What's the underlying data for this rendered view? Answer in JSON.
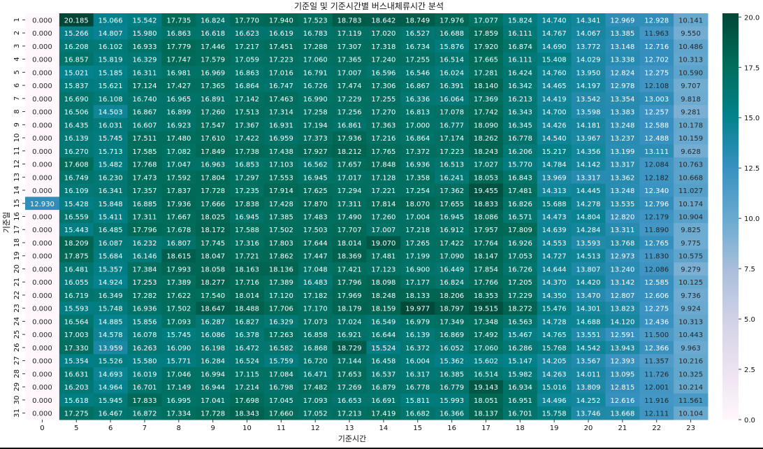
{
  "chart_data": {
    "type": "heatmap",
    "title": "기준일 및 기준시간별 버스내체류시간 분석",
    "xlabel": "기준시간",
    "ylabel": "기준일",
    "x_categories": [
      "0",
      "5",
      "6",
      "7",
      "8",
      "9",
      "10",
      "11",
      "12",
      "13",
      "14",
      "15",
      "16",
      "17",
      "18",
      "19",
      "20",
      "21",
      "22",
      "23"
    ],
    "y_categories": [
      "1",
      "2",
      "3",
      "4",
      "5",
      "6",
      "7",
      "8",
      "9",
      "10",
      "11",
      "12",
      "13",
      "14",
      "15",
      "16",
      "17",
      "18",
      "19",
      "20",
      "21",
      "22",
      "23",
      "24",
      "25",
      "26",
      "27",
      "28",
      "29",
      "30",
      "31"
    ],
    "values": [
      [
        0.0,
        20.185,
        15.066,
        15.542,
        17.735,
        16.824,
        17.77,
        17.94,
        17.523,
        18.783,
        18.642,
        18.749,
        17.976,
        17.077,
        15.824,
        14.74,
        14.341,
        12.969,
        12.928,
        10.141
      ],
      [
        0.0,
        15.266,
        14.807,
        15.98,
        16.863,
        16.618,
        16.623,
        16.619,
        16.783,
        17.119,
        17.02,
        16.527,
        16.688,
        17.859,
        16.111,
        14.767,
        14.067,
        13.385,
        11.963,
        9.55
      ],
      [
        0.0,
        16.208,
        16.102,
        16.933,
        17.779,
        17.446,
        17.217,
        17.451,
        17.288,
        17.307,
        17.318,
        16.734,
        15.876,
        17.92,
        16.874,
        14.69,
        13.772,
        13.148,
        12.716,
        10.486
      ],
      [
        0.0,
        16.857,
        15.819,
        16.329,
        17.747,
        17.579,
        17.059,
        17.223,
        17.06,
        17.365,
        17.24,
        17.255,
        16.514,
        17.665,
        16.111,
        15.408,
        14.029,
        13.338,
        12.702,
        10.313
      ],
      [
        0.0,
        15.021,
        15.185,
        16.311,
        16.981,
        16.969,
        16.863,
        17.016,
        16.791,
        17.007,
        16.596,
        16.546,
        16.024,
        17.281,
        16.424,
        14.76,
        13.95,
        12.824,
        12.275,
        10.59
      ],
      [
        0.0,
        15.837,
        15.621,
        17.124,
        17.427,
        17.365,
        16.864,
        16.747,
        16.726,
        17.474,
        17.306,
        16.867,
        16.391,
        18.14,
        16.342,
        14.465,
        14.197,
        12.978,
        12.108,
        9.707
      ],
      [
        0.0,
        16.69,
        16.108,
        16.74,
        16.965,
        16.891,
        17.142,
        17.463,
        16.99,
        17.229,
        17.255,
        16.336,
        16.064,
        17.369,
        16.213,
        14.419,
        13.542,
        13.354,
        13.003,
        9.818
      ],
      [
        0.0,
        16.506,
        14.503,
        16.867,
        16.899,
        17.26,
        17.513,
        17.314,
        17.258,
        17.256,
        17.27,
        16.813,
        17.078,
        17.742,
        16.343,
        14.7,
        13.598,
        13.383,
        12.257,
        9.281
      ],
      [
        0.0,
        16.435,
        16.031,
        16.607,
        16.923,
        17.547,
        17.367,
        16.931,
        17.194,
        16.861,
        17.363,
        17.0,
        16.777,
        18.09,
        16.345,
        14.426,
        14.181,
        13.248,
        12.588,
        10.178
      ],
      [
        0.0,
        16.139,
        15.745,
        17.511,
        17.48,
        17.61,
        17.422,
        16.959,
        17.373,
        17.936,
        17.216,
        16.864,
        17.174,
        18.262,
        16.778,
        14.54,
        13.967,
        13.237,
        12.488,
        10.159
      ],
      [
        0.0,
        16.27,
        15.713,
        17.585,
        17.082,
        17.849,
        17.738,
        17.438,
        17.927,
        18.212,
        17.765,
        17.372,
        17.223,
        18.243,
        16.206,
        15.217,
        14.356,
        13.199,
        13.111,
        9.628
      ],
      [
        0.0,
        17.608,
        15.482,
        17.768,
        17.047,
        16.963,
        16.853,
        17.103,
        16.562,
        17.657,
        17.848,
        16.936,
        16.513,
        17.027,
        15.77,
        14.784,
        14.142,
        13.317,
        12.084,
        10.763
      ],
      [
        0.0,
        16.749,
        16.23,
        17.473,
        17.592,
        17.804,
        17.297,
        17.553,
        16.945,
        17.017,
        17.128,
        17.358,
        16.241,
        18.053,
        16.843,
        13.969,
        13.317,
        13.362,
        12.182,
        10.668
      ],
      [
        0.0,
        16.109,
        16.341,
        17.357,
        17.837,
        17.728,
        17.235,
        17.914,
        17.625,
        17.294,
        17.221,
        17.254,
        17.362,
        19.455,
        17.481,
        14.313,
        14.445,
        13.248,
        12.34,
        11.027
      ],
      [
        12.93,
        15.428,
        15.848,
        16.885,
        17.936,
        17.666,
        17.838,
        17.428,
        17.87,
        17.311,
        17.814,
        18.07,
        17.655,
        18.833,
        16.826,
        15.688,
        14.278,
        13.535,
        12.796,
        10.174
      ],
      [
        0.0,
        16.559,
        15.411,
        17.311,
        17.667,
        18.025,
        16.945,
        17.385,
        17.483,
        17.49,
        17.26,
        17.004,
        16.945,
        18.086,
        16.571,
        14.473,
        14.804,
        12.82,
        12.179,
        10.904
      ],
      [
        0.0,
        15.443,
        16.485,
        17.796,
        17.678,
        18.172,
        17.588,
        17.502,
        17.503,
        17.707,
        17.007,
        17.218,
        16.912,
        17.957,
        17.809,
        14.639,
        14.284,
        13.311,
        11.89,
        9.825
      ],
      [
        0.0,
        18.209,
        16.087,
        16.232,
        16.807,
        17.745,
        17.316,
        17.803,
        17.644,
        18.014,
        19.07,
        17.265,
        17.422,
        17.764,
        16.926,
        14.553,
        13.593,
        13.768,
        12.765,
        9.775
      ],
      [
        0.0,
        17.875,
        15.684,
        16.146,
        18.615,
        18.047,
        17.721,
        17.862,
        17.447,
        18.369,
        17.481,
        17.199,
        17.09,
        18.147,
        17.053,
        14.727,
        14.513,
        12.973,
        11.83,
        10.575
      ],
      [
        0.0,
        16.481,
        15.357,
        17.384,
        17.993,
        18.058,
        18.163,
        18.136,
        17.048,
        17.421,
        17.123,
        16.9,
        16.449,
        17.854,
        16.726,
        14.644,
        13.807,
        13.24,
        12.086,
        9.279
      ],
      [
        0.0,
        16.055,
        14.924,
        17.253,
        17.389,
        18.277,
        17.716,
        17.389,
        16.483,
        17.796,
        18.098,
        17.177,
        16.824,
        17.766,
        17.205,
        14.37,
        14.42,
        13.142,
        12.585,
        10.125
      ],
      [
        0.0,
        16.719,
        16.349,
        17.282,
        17.622,
        17.54,
        18.014,
        17.12,
        17.182,
        17.969,
        18.248,
        18.133,
        18.206,
        18.353,
        17.229,
        14.35,
        13.47,
        12.807,
        12.606,
        9.736
      ],
      [
        0.0,
        15.593,
        15.748,
        16.936,
        17.502,
        18.647,
        18.488,
        17.706,
        17.17,
        18.179,
        18.159,
        19.977,
        18.797,
        19.515,
        18.272,
        15.476,
        14.301,
        13.823,
        12.275,
        9.924
      ],
      [
        0.0,
        16.564,
        14.885,
        15.856,
        17.093,
        16.287,
        16.827,
        16.329,
        17.073,
        17.024,
        16.549,
        16.979,
        17.349,
        17.348,
        16.563,
        14.728,
        14.688,
        14.12,
        12.436,
        10.313
      ],
      [
        0.0,
        17.003,
        14.578,
        16.078,
        15.745,
        16.086,
        16.378,
        17.263,
        16.858,
        16.921,
        16.644,
        16.139,
        16.869,
        17.492,
        15.467,
        14.765,
        13.551,
        12.591,
        11.5,
        10.443
      ],
      [
        0.0,
        17.33,
        13.959,
        16.263,
        16.09,
        16.198,
        16.472,
        16.582,
        16.868,
        18.729,
        15.524,
        16.372,
        16.052,
        17.06,
        16.286,
        15.768,
        14.542,
        13.943,
        12.366,
        9.963
      ],
      [
        0.0,
        15.354,
        15.526,
        15.58,
        15.771,
        16.284,
        16.524,
        15.759,
        16.72,
        17.144,
        16.458,
        16.004,
        15.362,
        15.602,
        15.147,
        14.205,
        13.567,
        12.393,
        11.357,
        10.216
      ],
      [
        0.0,
        16.631,
        14.693,
        16.019,
        17.046,
        16.994,
        17.115,
        17.084,
        16.471,
        17.653,
        16.537,
        16.317,
        16.385,
        16.514,
        15.982,
        14.263,
        14.011,
        13.095,
        11.726,
        10.325
      ],
      [
        0.0,
        16.203,
        14.964,
        16.701,
        17.149,
        16.944,
        17.214,
        16.798,
        17.482,
        17.269,
        16.879,
        16.778,
        16.779,
        19.143,
        16.934,
        15.016,
        13.809,
        12.815,
        12.001,
        10.214
      ],
      [
        0.0,
        15.618,
        15.945,
        17.833,
        16.995,
        17.041,
        17.698,
        17.045,
        17.093,
        16.653,
        16.691,
        15.811,
        15.993,
        18.051,
        16.951,
        14.496,
        14.252,
        12.616,
        11.916,
        11.561
      ],
      [
        0.0,
        17.275,
        16.467,
        16.872,
        17.334,
        17.728,
        18.343,
        17.66,
        17.052,
        17.213,
        17.419,
        16.682,
        16.366,
        18.137,
        16.701,
        15.758,
        13.746,
        13.668,
        12.111,
        10.104
      ]
    ],
    "colorbar": {
      "colormap": "PuBuGn",
      "range": [
        0,
        20.185
      ],
      "ticks": [
        "0.0",
        "2.5",
        "5.0",
        "7.5",
        "10.0",
        "12.5",
        "15.0",
        "17.5",
        "20.0"
      ]
    },
    "grid": false,
    "legend": "colorbar-right"
  }
}
